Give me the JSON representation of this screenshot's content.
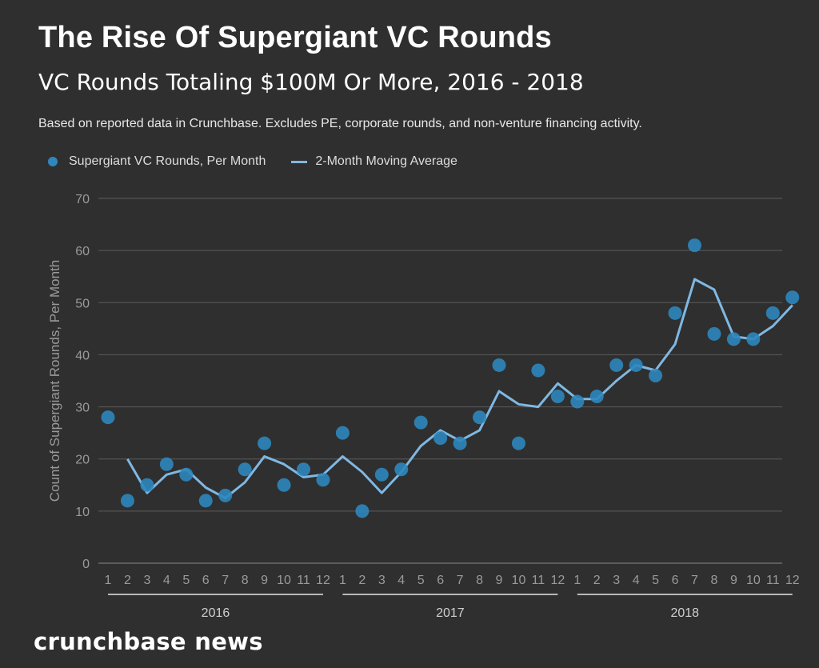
{
  "header": {
    "title": "The Rise Of Supergiant VC Rounds",
    "subtitle": "VC Rounds Totaling $100M Or More, 2016 - 2018",
    "note": "Based on reported data in Crunchbase. Excludes PE, corporate rounds, and non-venture financing activity."
  },
  "brand": "crunchbase news",
  "chart_data": {
    "type": "scatter",
    "title": "The Rise Of Supergiant VC Rounds",
    "ylabel": "Count of Supergiant Rounds, Per Month",
    "xlabel": "",
    "ylim": [
      0,
      70
    ],
    "yticks": [
      "0",
      "10",
      "20",
      "30",
      "40",
      "50",
      "60",
      "70"
    ],
    "grid": true,
    "legend_position": "top-left",
    "years": [
      "2016",
      "2017",
      "2018"
    ],
    "categories": [
      "1",
      "2",
      "3",
      "4",
      "5",
      "6",
      "7",
      "8",
      "9",
      "10",
      "11",
      "12",
      "1",
      "2",
      "3",
      "4",
      "5",
      "6",
      "7",
      "8",
      "9",
      "10",
      "11",
      "12",
      "1",
      "2",
      "3",
      "4",
      "5",
      "6",
      "7",
      "8",
      "9",
      "10",
      "11",
      "12"
    ],
    "series": [
      {
        "name": "Supergiant VC Rounds, Per Month",
        "kind": "points",
        "color": "#2e87bd",
        "values": [
          28,
          12,
          15,
          19,
          17,
          12,
          13,
          18,
          23,
          15,
          18,
          16,
          25,
          10,
          17,
          18,
          27,
          24,
          23,
          28,
          38,
          23,
          37,
          32,
          31,
          32,
          38,
          38,
          36,
          48,
          61,
          44,
          43,
          43,
          48,
          51
        ]
      },
      {
        "name": "2-Month Moving Average",
        "kind": "line",
        "color": "#7fb8e3",
        "values": [
          null,
          20,
          13.5,
          17,
          18,
          14.5,
          12.5,
          15.5,
          20.5,
          19,
          16.5,
          17,
          20.5,
          17.5,
          13.5,
          17.5,
          22.5,
          25.5,
          23.5,
          25.5,
          33,
          30.5,
          30,
          34.5,
          31.5,
          31.5,
          35,
          38,
          37,
          42,
          54.5,
          52.5,
          43.5,
          43,
          45.5,
          49.5
        ]
      }
    ]
  }
}
